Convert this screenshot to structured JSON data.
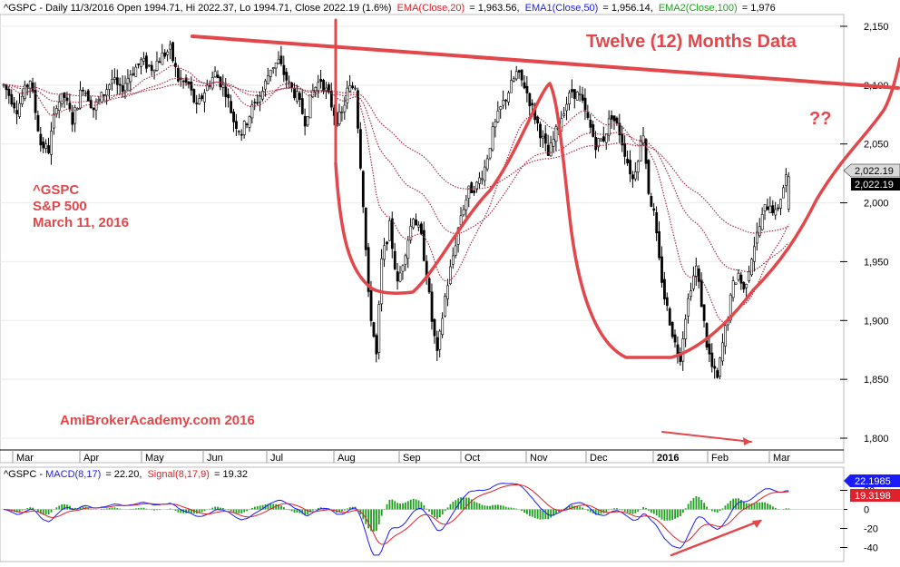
{
  "header": {
    "prefix": "^GSPC - Daily 11/3/2016 Open 1994.71, Hi 2022.37, Lo 1994.71, Close 2022.19 (1.6%)",
    "ema20_label": "EMA(Close,20)",
    "ema20_value": "= 1,963.56,",
    "ema50_label": "EMA1(Close,50)",
    "ema50_value": "= 1,956.14,",
    "ema100_label": "EMA2(Close,100)",
    "ema100_value": "= 1,976"
  },
  "macd_header": {
    "prefix": "^GSPC - ",
    "macd_label": "MACD(8,17)",
    "macd_value": "= 22.20,",
    "signal_label": "Signal(8,17,9)",
    "signal_value": "= 19.32"
  },
  "annotations": {
    "big_title": "Twelve (12) Months Data",
    "question": "??",
    "ticker": "^GSPC",
    "index_name": "S&P 500",
    "date": "March 11, 2016",
    "watermark": "AmiBrokerAcademy.com  2016"
  },
  "price_badges": {
    "gray": "2,022.19",
    "black": "2,022.19"
  },
  "macd_badges": {
    "blue": "22.1985",
    "red": "19.3198"
  },
  "colors": {
    "annotation": "#e2474b",
    "ema20": "#e0202a",
    "ema50": "#1a1aff",
    "ema100": "#1aa31a",
    "ema_line": "#a0304a",
    "macd_line": "#1a1aff",
    "signal_line": "#e0202a",
    "histogram": "#1f9e1f"
  },
  "chart_data": [
    {
      "type": "candlestick",
      "x_tick_labels": [
        "Mar",
        "Apr",
        "May",
        "Jun",
        "Jul",
        "Aug",
        "Sep",
        "Oct",
        "Nov",
        "Dec",
        "2016",
        "Feb",
        "Mar"
      ],
      "y_tick_labels": [
        "2,150",
        "2,100",
        "2,050",
        "2,000",
        "1,950",
        "1,900",
        "1,850",
        "1,800"
      ],
      "ylim": [
        1790,
        2160
      ],
      "last_close": 2022.19,
      "ema": [
        {
          "name": "EMA(Close,20)",
          "last": 1963.56
        },
        {
          "name": "EMA1(Close,50)",
          "last": 1956.14
        },
        {
          "name": "EMA2(Close,100)",
          "last": 1976
        }
      ],
      "price_path": [
        [
          0,
          2100
        ],
        [
          5,
          2080
        ],
        [
          10,
          2105
        ],
        [
          14,
          2050
        ],
        [
          17,
          2045
        ],
        [
          20,
          2085
        ],
        [
          23,
          2090
        ],
        [
          26,
          2070
        ],
        [
          30,
          2100
        ],
        [
          34,
          2080
        ],
        [
          37,
          2090
        ],
        [
          41,
          2105
        ],
        [
          44,
          2095
        ],
        [
          48,
          2110
        ],
        [
          52,
          2120
        ],
        [
          56,
          2115
        ],
        [
          60,
          2125
        ],
        [
          63,
          2130
        ],
        [
          66,
          2105
        ],
        [
          70,
          2100
        ],
        [
          73,
          2080
        ],
        [
          76,
          2095
        ],
        [
          80,
          2110
        ],
        [
          84,
          2095
        ],
        [
          87,
          2070
        ],
        [
          90,
          2060
        ],
        [
          94,
          2080
        ],
        [
          98,
          2095
        ],
        [
          101,
          2115
        ],
        [
          104,
          2120
        ],
        [
          108,
          2100
        ],
        [
          111,
          2090
        ],
        [
          114,
          2070
        ],
        [
          117,
          2095
        ],
        [
          120,
          2105
        ],
        [
          123,
          2090
        ],
        [
          126,
          2070
        ],
        [
          128,
          2075
        ],
        [
          130,
          2095
        ],
        [
          133,
          2100
        ],
        [
          136,
          2000
        ],
        [
          138,
          1920
        ],
        [
          141,
          1870
        ],
        [
          143,
          1950
        ],
        [
          146,
          1980
        ],
        [
          149,
          1930
        ],
        [
          152,
          1960
        ],
        [
          155,
          1990
        ],
        [
          158,
          1970
        ],
        [
          160,
          1940
        ],
        [
          162,
          1900
        ],
        [
          164,
          1870
        ],
        [
          167,
          1920
        ],
        [
          170,
          1955
        ],
        [
          173,
          1990
        ],
        [
          176,
          2010
        ],
        [
          179,
          2015
        ],
        [
          182,
          2030
        ],
        [
          185,
          2060
        ],
        [
          188,
          2080
        ],
        [
          191,
          2095
        ],
        [
          194,
          2110
        ],
        [
          197,
          2100
        ],
        [
          200,
          2080
        ],
        [
          203,
          2060
        ],
        [
          206,
          2040
        ],
        [
          209,
          2060
        ],
        [
          212,
          2080
        ],
        [
          215,
          2095
        ],
        [
          218,
          2090
        ],
        [
          221,
          2070
        ],
        [
          224,
          2050
        ],
        [
          227,
          2055
        ],
        [
          230,
          2075
        ],
        [
          233,
          2060
        ],
        [
          236,
          2035
        ],
        [
          238,
          2020
        ],
        [
          240,
          2040
        ],
        [
          242,
          2060
        ],
        [
          244,
          2010
        ],
        [
          246,
          1990
        ],
        [
          248,
          1950
        ],
        [
          250,
          1920
        ],
        [
          252,
          1900
        ],
        [
          254,
          1880
        ],
        [
          256,
          1870
        ],
        [
          258,
          1905
        ],
        [
          260,
          1930
        ],
        [
          262,
          1945
        ],
        [
          264,
          1915
        ],
        [
          266,
          1880
        ],
        [
          268,
          1860
        ],
        [
          270,
          1850
        ],
        [
          272,
          1880
        ],
        [
          274,
          1905
        ],
        [
          276,
          1930
        ],
        [
          278,
          1940
        ],
        [
          280,
          1925
        ],
        [
          282,
          1945
        ],
        [
          284,
          1965
        ],
        [
          286,
          1980
        ],
        [
          288,
          1995
        ],
        [
          290,
          2000
        ],
        [
          292,
          1990
        ],
        [
          294,
          2005
        ],
        [
          296,
          2022
        ]
      ]
    },
    {
      "type": "line",
      "name": "MACD",
      "y_tick_labels": [
        "20",
        "0",
        "-20",
        "-40"
      ],
      "ylim": [
        -50,
        30
      ],
      "series": [
        {
          "name": "MACD(8,17)",
          "last": 22.1985
        },
        {
          "name": "Signal(8,17,9)",
          "last": 19.3198
        }
      ]
    }
  ]
}
